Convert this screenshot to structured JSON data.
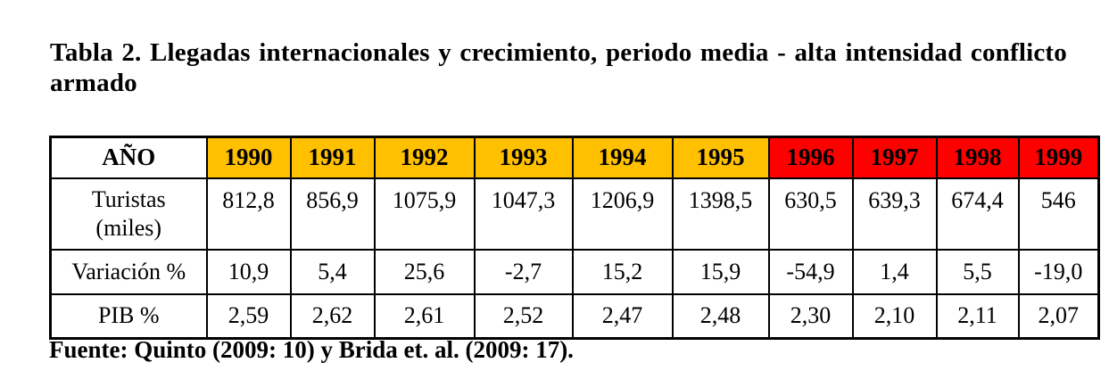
{
  "title": "Tabla 2. Llegadas internacionales y crecimiento, periodo media - alta intensidad conflicto armado",
  "table": {
    "header_label": "AÑO",
    "years": [
      "1990",
      "1991",
      "1992",
      "1993",
      "1994",
      "1995",
      "1996",
      "1997",
      "1998",
      "1999"
    ],
    "year_colors": [
      "#FFC000",
      "#FFC000",
      "#FFC000",
      "#FFC000",
      "#FFC000",
      "#FFC000",
      "#FF0000",
      "#FF0000",
      "#FF0000",
      "#FF0000"
    ],
    "rows": [
      {
        "label_line1": "Turistas",
        "label_line2": "(miles)",
        "values": [
          "812,8",
          "856,9",
          "1075,9",
          "1047,3",
          "1206,9",
          "1398,5",
          "630,5",
          "639,3",
          "674,4",
          "546"
        ]
      },
      {
        "label": "Variación %",
        "values": [
          "10,9",
          "5,4",
          "25,6",
          "-2,7",
          "15,2",
          "15,9",
          "-54,9",
          "1,4",
          "5,5",
          "-19,0"
        ]
      },
      {
        "label": "PIB %",
        "values": [
          "2,59",
          "2,62",
          "2,61",
          "2,52",
          "2,47",
          "2,48",
          "2,30",
          "2,10",
          "2,11",
          "2,07"
        ]
      }
    ]
  },
  "source": "Fuente: Quinto (2009: 10) y Brida et. al. (2009: 17)."
}
